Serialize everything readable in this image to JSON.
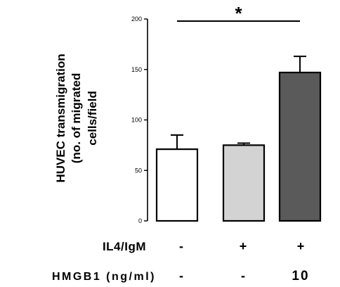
{
  "chart_data": {
    "type": "bar",
    "ylabel_lines": [
      "HUVEC transmigration",
      "(no. of migrated",
      "cells/field"
    ],
    "ylim": [
      0,
      200
    ],
    "yticks": [
      {
        "value": 0,
        "label": "0"
      },
      {
        "value": 50,
        "label": "50"
      },
      {
        "value": 100,
        "label": "100"
      },
      {
        "value": 150,
        "label": "150"
      },
      {
        "value": 200,
        "label": "200"
      }
    ],
    "bars": [
      {
        "value": 71,
        "error": 14,
        "color": "#ffffff"
      },
      {
        "value": 75,
        "error": 2,
        "color": "#d3d3d3"
      },
      {
        "value": 147,
        "error": 16,
        "color": "#5a5a5a"
      }
    ],
    "significance": {
      "label": "*",
      "from_bar": 0,
      "to_bar": 2
    },
    "conditions": [
      {
        "label": "IL4/IgM",
        "values": [
          "-",
          "+",
          "+"
        ]
      },
      {
        "label": "HMGB1 (ng/ml)",
        "values": [
          "-",
          "-",
          "10"
        ]
      }
    ]
  }
}
